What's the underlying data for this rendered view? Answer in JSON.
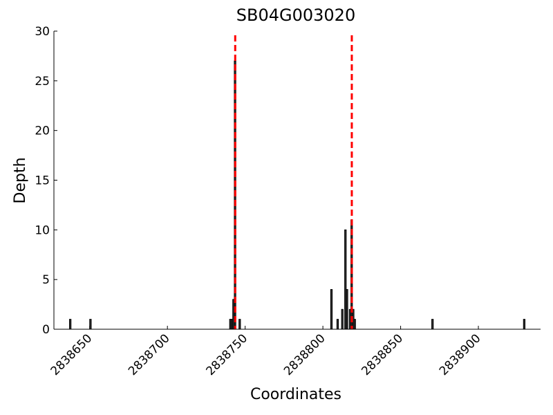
{
  "chart_data": {
    "type": "bar",
    "title": "SB04G003020",
    "x_label": "Coordinates",
    "y_label": "Depth",
    "x": [
      2838637,
      2838650,
      2838740,
      2838741,
      2838742,
      2838743,
      2838746,
      2838805,
      2838809,
      2838812,
      2838814,
      2838815,
      2838817,
      2838818,
      2838819,
      2838820,
      2838870,
      2838929
    ],
    "values": [
      1,
      1,
      1,
      1,
      3,
      27,
      1,
      4,
      1,
      2,
      10,
      4,
      2,
      11,
      2,
      1,
      1,
      1
    ],
    "bar_width": 1,
    "color": "#333333",
    "xlim": [
      2838627,
      2838940
    ],
    "ylim": [
      0,
      30
    ],
    "xticks": [
      2838650,
      2838700,
      2838750,
      2838800,
      2838850,
      2838900
    ],
    "yticks": [
      0,
      5,
      10,
      15,
      20,
      25,
      30
    ],
    "vlines": [
      {
        "x": 2838743.6,
        "color": "#ff0000"
      },
      {
        "x": 2838818.6,
        "color": "#ff0000"
      }
    ],
    "grid": false
  }
}
